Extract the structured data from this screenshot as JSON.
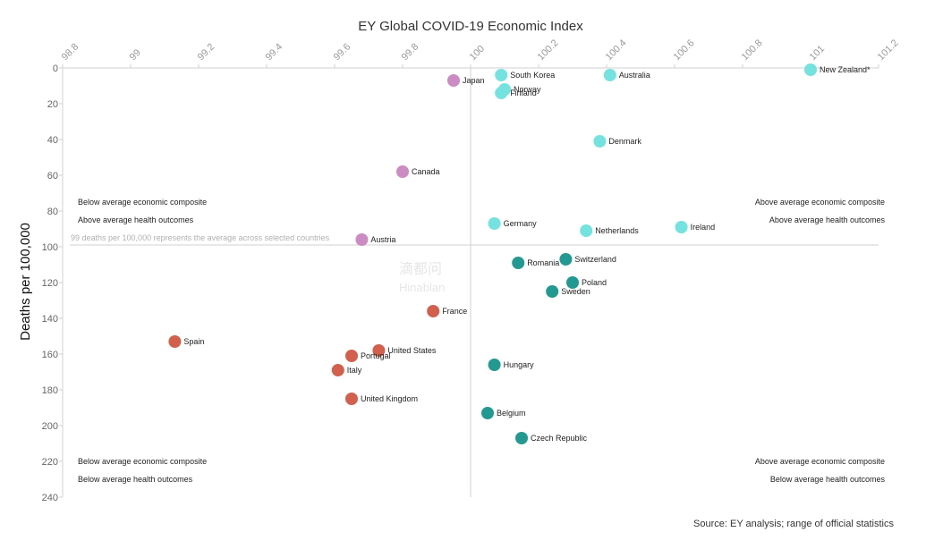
{
  "chart_data": {
    "type": "scatter",
    "title": "EY Global COVID-19 Economic Index",
    "xlabel": "",
    "ylabel": "Deaths per 100,000",
    "xlim": [
      98.8,
      101.2
    ],
    "ylim": [
      0,
      240
    ],
    "y_inverted": true,
    "x_axis_position": "top",
    "x_ticks": [
      98.8,
      99,
      99.2,
      99.4,
      99.6,
      99.8,
      100,
      100.2,
      100.4,
      100.6,
      100.8,
      101,
      101.2
    ],
    "x_tick_labels": [
      "98.8",
      "99",
      "99.2",
      "99.4",
      "99.6",
      "99.8",
      "100",
      "100.2",
      "100.4",
      "100.6",
      "100.8",
      "101",
      "101.2"
    ],
    "y_ticks": [
      0,
      20,
      40,
      60,
      80,
      100,
      120,
      140,
      160,
      180,
      200,
      220,
      240
    ],
    "y_tick_labels": [
      "0",
      "20",
      "40",
      "60",
      "80",
      "100",
      "120",
      "140",
      "160",
      "180",
      "200",
      "220",
      "240"
    ],
    "grid": false,
    "reference_lines": {
      "x": 100,
      "y": 99
    },
    "reference_note": "99 deaths per 100,000 represents the average across selected countries",
    "quadrant_labels": [
      {
        "position": "upper-left",
        "lines": [
          "Below average economic composite",
          "Above average health outcomes"
        ]
      },
      {
        "position": "upper-right",
        "lines": [
          "Above average economic composite",
          "Above average health outcomes"
        ]
      },
      {
        "position": "lower-left",
        "lines": [
          "Below average economic composite",
          "Below average health outcomes"
        ]
      },
      {
        "position": "lower-right",
        "lines": [
          "Above average economic composite",
          "Below average health outcomes"
        ]
      }
    ],
    "series": [
      {
        "name": "Above economic / above health",
        "color": "#74e3df",
        "points": [
          {
            "label": "New Zealand*",
            "x": 101.0,
            "y": 1
          },
          {
            "label": "South Korea",
            "x": 100.09,
            "y": 4
          },
          {
            "label": "Australia",
            "x": 100.41,
            "y": 4
          },
          {
            "label": "Norway",
            "x": 100.1,
            "y": 12
          },
          {
            "label": "Finland",
            "x": 100.09,
            "y": 14
          },
          {
            "label": "Denmark",
            "x": 100.38,
            "y": 41
          },
          {
            "label": "Germany",
            "x": 100.07,
            "y": 87
          },
          {
            "label": "Netherlands",
            "x": 100.34,
            "y": 91
          },
          {
            "label": "Ireland",
            "x": 100.62,
            "y": 89
          }
        ]
      },
      {
        "name": "Below economic / above health",
        "color": "#cc8bc2",
        "points": [
          {
            "label": "Japan",
            "x": 99.95,
            "y": 7
          },
          {
            "label": "Canada",
            "x": 99.8,
            "y": 58
          },
          {
            "label": "Austria",
            "x": 99.68,
            "y": 96
          }
        ]
      },
      {
        "name": "Above economic / below health",
        "color": "#239a91",
        "points": [
          {
            "label": "Romania",
            "x": 100.14,
            "y": 109
          },
          {
            "label": "Switzerland",
            "x": 100.28,
            "y": 107
          },
          {
            "label": "Poland",
            "x": 100.3,
            "y": 120
          },
          {
            "label": "Sweden",
            "x": 100.24,
            "y": 125
          },
          {
            "label": "Hungary",
            "x": 100.07,
            "y": 166
          },
          {
            "label": "Belgium",
            "x": 100.05,
            "y": 193
          },
          {
            "label": "Czech Republic",
            "x": 100.15,
            "y": 207
          }
        ]
      },
      {
        "name": "Below economic / below health",
        "color": "#d2604c",
        "points": [
          {
            "label": "France",
            "x": 99.89,
            "y": 136
          },
          {
            "label": "Spain",
            "x": 99.13,
            "y": 153
          },
          {
            "label": "United States",
            "x": 99.73,
            "y": 158
          },
          {
            "label": "Portugal",
            "x": 99.65,
            "y": 161
          },
          {
            "label": "Italy",
            "x": 99.61,
            "y": 169
          },
          {
            "label": "United Kingdom",
            "x": 99.65,
            "y": 185
          }
        ]
      }
    ],
    "source": "Source: EY analysis; range of official statistics",
    "watermark": [
      "滴都问",
      "Hinablan"
    ]
  },
  "colors": {
    "cyan": "#74e3df",
    "teal": "#239a91",
    "pink": "#cc8bc2",
    "red": "#d2604c",
    "axis": "#d0d0d0"
  }
}
